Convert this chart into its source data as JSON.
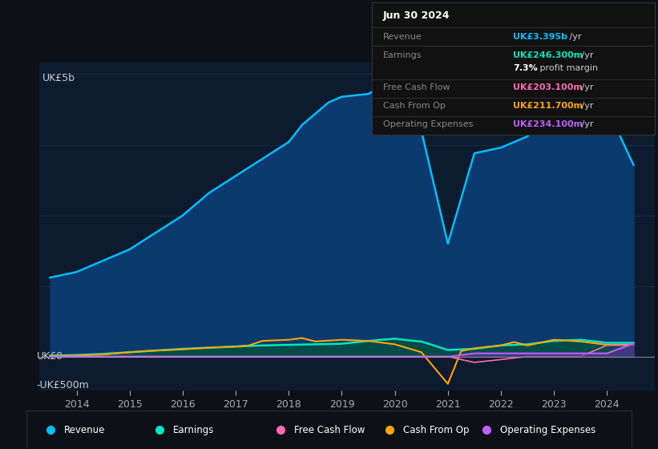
{
  "bg_color": "#0d1117",
  "plot_bg_color": "#0d1b2e",
  "title_box_date": "Jun 30 2024",
  "y_label_top": "UK£5b",
  "y_label_zero": "UK£0",
  "y_label_neg": "-UK£500m",
  "x_ticks": [
    2014,
    2015,
    2016,
    2017,
    2018,
    2019,
    2020,
    2021,
    2022,
    2023,
    2024
  ],
  "ylim": [
    -600,
    5200
  ],
  "revenue_x": [
    2013.5,
    2014,
    2014.5,
    2015,
    2015.5,
    2016,
    2016.5,
    2017,
    2017.5,
    2018,
    2018.25,
    2018.75,
    2019,
    2019.5,
    2020,
    2020.5,
    2021,
    2021.5,
    2022,
    2022.25,
    2022.5,
    2023,
    2023.25,
    2023.5,
    2024,
    2024.5
  ],
  "revenue_y": [
    1400,
    1500,
    1700,
    1900,
    2200,
    2500,
    2900,
    3200,
    3500,
    3800,
    4100,
    4500,
    4600,
    4650,
    4900,
    4000,
    2000,
    3600,
    3700,
    3800,
    3900,
    4300,
    4500,
    4600,
    4400,
    3395
  ],
  "revenue_color": "#00bfff",
  "revenue_fill": "#0a3a6e",
  "earnings_x": [
    2013.5,
    2014,
    2014.5,
    2015,
    2015.5,
    2016,
    2016.5,
    2017,
    2017.5,
    2018,
    2018.5,
    2019,
    2019.5,
    2020,
    2020.25,
    2020.5,
    2021,
    2021.5,
    2022,
    2022.5,
    2023,
    2023.5,
    2024,
    2024.5
  ],
  "earnings_y": [
    20,
    30,
    50,
    80,
    110,
    140,
    160,
    180,
    200,
    210,
    220,
    230,
    280,
    320,
    290,
    270,
    120,
    140,
    200,
    220,
    280,
    300,
    246,
    246
  ],
  "earnings_color": "#00e5c0",
  "earnings_fill": "#004d44",
  "fcf_x": [
    2013.5,
    2014,
    2014.5,
    2015,
    2015.5,
    2016,
    2016.5,
    2017,
    2017.5,
    2018,
    2018.5,
    2019,
    2019.5,
    2020,
    2020.5,
    2021,
    2021.25,
    2021.5,
    2022,
    2022.5,
    2023,
    2023.5,
    2024,
    2024.5
  ],
  "fcf_y": [
    0,
    5,
    5,
    5,
    5,
    5,
    5,
    5,
    5,
    5,
    5,
    5,
    5,
    5,
    5,
    5,
    -50,
    -100,
    -50,
    5,
    5,
    5,
    203,
    203
  ],
  "fcf_color": "#ff69b4",
  "cfop_x": [
    2013.5,
    2014,
    2014.5,
    2015,
    2015.5,
    2016,
    2016.5,
    2017,
    2017.25,
    2017.5,
    2018,
    2018.25,
    2018.5,
    2019,
    2019.5,
    2020,
    2020.5,
    2021,
    2021.25,
    2021.5,
    2022,
    2022.25,
    2022.5,
    2023,
    2023.5,
    2024,
    2024.5
  ],
  "cfop_y": [
    10,
    20,
    40,
    80,
    110,
    130,
    160,
    180,
    200,
    280,
    300,
    330,
    270,
    300,
    280,
    220,
    80,
    -480,
    100,
    150,
    200,
    260,
    200,
    300,
    270,
    211,
    211
  ],
  "cfop_color": "#ffa500",
  "cfop_neg_fill": "#4a1010",
  "opex_x": [
    2013.5,
    2014,
    2019.5,
    2020,
    2020.5,
    2021,
    2021.5,
    2022,
    2022.5,
    2023,
    2023.5,
    2024,
    2024.5
  ],
  "opex_y": [
    0,
    0,
    0,
    0,
    0,
    0,
    60,
    60,
    60,
    60,
    60,
    60,
    234
  ],
  "opex_color": "#bf5fff",
  "opex_fill": "#6a2fa0",
  "grid_color": "#1e3050",
  "zero_line_color": "#aaaaaa",
  "box_rows": [
    {
      "label": "Revenue",
      "value": "UK£3.395b",
      "unit": " /yr",
      "vcolor": "#00bfff"
    },
    {
      "label": "Earnings",
      "value": "UK£246.300m",
      "unit": " /yr",
      "vcolor": "#00e5c0"
    },
    {
      "label": "",
      "value": "7.3%",
      "unit": " profit margin",
      "vcolor": "#ffffff"
    },
    {
      "label": "Free Cash Flow",
      "value": "UK£203.100m",
      "unit": " /yr",
      "vcolor": "#ff69b4"
    },
    {
      "label": "Cash From Op",
      "value": "UK£211.700m",
      "unit": " /yr",
      "vcolor": "#ffa500"
    },
    {
      "label": "Operating Expenses",
      "value": "UK£234.100m",
      "unit": " /yr",
      "vcolor": "#bf5fff"
    }
  ],
  "legend_items": [
    {
      "label": "Revenue",
      "color": "#00bfff"
    },
    {
      "label": "Earnings",
      "color": "#00e5c0"
    },
    {
      "label": "Free Cash Flow",
      "color": "#ff69b4"
    },
    {
      "label": "Cash From Op",
      "color": "#ffa500"
    },
    {
      "label": "Operating Expenses",
      "color": "#bf5fff"
    }
  ]
}
